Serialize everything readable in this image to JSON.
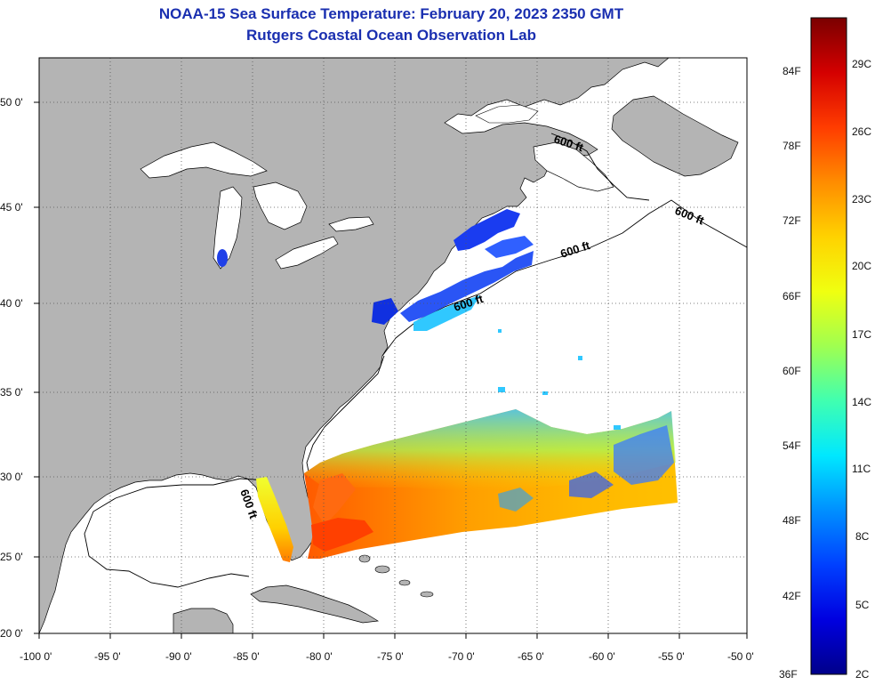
{
  "header": {
    "title": "NOAA-15 Sea Surface Temperature:  February 20, 2023 2350 GMT",
    "subtitle": "Rutgers Coastal Ocean Observation Lab"
  },
  "map": {
    "lat_labels": [
      "50 0'",
      "45 0'",
      "40 0'",
      "35 0'",
      "30 0'",
      "25 0'",
      "20 0'"
    ],
    "lon_labels": [
      "-100 0'",
      "-95 0'",
      "-90 0'",
      "-85 0'",
      "-80 0'",
      "-75 0'",
      "-70 0'",
      "-65 0'",
      "-60 0'",
      "-55 0'",
      "-50 0'"
    ],
    "contour_labels": [
      "600 ft",
      "600 ft",
      "600 ft",
      "600 ft",
      "600 ft"
    ],
    "colors": {
      "land": "#b4b4b4",
      "ocean": "#ffffff",
      "grid": "#555555"
    }
  },
  "colorbar": {
    "fahrenheit_labels": [
      "84F",
      "78F",
      "72F",
      "66F",
      "60F",
      "54F",
      "48F",
      "42F",
      "36F"
    ],
    "celsius_labels": [
      "29C",
      "26C",
      "23C",
      "20C",
      "17C",
      "14C",
      "11C",
      "8C",
      "5C",
      "2C"
    ],
    "gradient": [
      "#7a0000",
      "#d40000",
      "#ff3c00",
      "#ff8c00",
      "#ffd200",
      "#f0ff10",
      "#a0ff50",
      "#40ffb0",
      "#00e8ff",
      "#0090ff",
      "#0040ff",
      "#0000e0",
      "#00008a"
    ]
  }
}
